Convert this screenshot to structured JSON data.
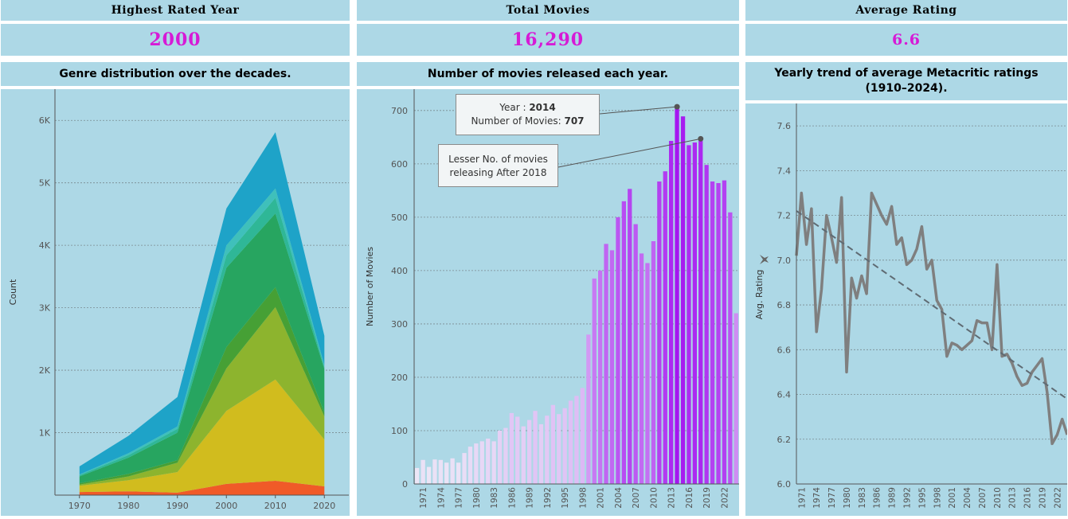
{
  "kpis": [
    {
      "title": "Highest Rated Year",
      "value": "2000"
    },
    {
      "title": "Total Movies",
      "value": "16,290"
    },
    {
      "title": "Average Rating",
      "value": "6.6"
    }
  ],
  "chart_data": [
    {
      "type": "area",
      "title": "Genre distribution over the decades.",
      "xlabel": "",
      "ylabel": "Count",
      "x": [
        1970,
        1980,
        1990,
        2000,
        2010,
        2020
      ],
      "xticks": [
        "1970",
        "1980",
        "1990",
        "2000",
        "2010",
        "2020"
      ],
      "ylim": [
        0,
        6500
      ],
      "yticks": [
        {
          "v": 1000,
          "label": "1K"
        },
        {
          "v": 2000,
          "label": "2K"
        },
        {
          "v": 3000,
          "label": "3K"
        },
        {
          "v": 4000,
          "label": "4K"
        },
        {
          "v": 5000,
          "label": "5K"
        },
        {
          "v": 6000,
          "label": "6K"
        }
      ],
      "stacking": "stacked",
      "series": [
        {
          "color": "#f05a28",
          "values": [
            50,
            60,
            40,
            180,
            230,
            140
          ]
        },
        {
          "color": "#d1bc1e",
          "values": [
            100,
            180,
            330,
            1170,
            1620,
            750
          ]
        },
        {
          "color": "#8db42e",
          "values": [
            20,
            60,
            150,
            680,
            1160,
            370
          ]
        },
        {
          "color": "#46a035",
          "values": [
            20,
            40,
            40,
            340,
            320,
            60
          ]
        },
        {
          "color": "#27a560",
          "values": [
            110,
            260,
            440,
            1270,
            1180,
            700
          ]
        },
        {
          "color": "#2fb797",
          "values": [
            20,
            40,
            60,
            200,
            250,
            30
          ]
        },
        {
          "color": "#3fc0bb",
          "values": [
            10,
            30,
            40,
            160,
            150,
            30
          ]
        },
        {
          "color": "#1ea3c8",
          "values": [
            130,
            280,
            470,
            590,
            900,
            470
          ]
        }
      ],
      "grid": true
    },
    {
      "type": "bar",
      "title": "Number of movies released each year.",
      "ylabel": "Number of Movies",
      "xlabel": "",
      "ylim": [
        0,
        740
      ],
      "yticks": [
        0,
        100,
        200,
        300,
        400,
        500,
        600,
        700
      ],
      "categories": [
        "1970",
        "1971",
        "1972",
        "1973",
        "1974",
        "1975",
        "1976",
        "1977",
        "1978",
        "1979",
        "1980",
        "1981",
        "1982",
        "1983",
        "1984",
        "1985",
        "1986",
        "1987",
        "1988",
        "1989",
        "1990",
        "1991",
        "1992",
        "1993",
        "1994",
        "1995",
        "1996",
        "1997",
        "1998",
        "1999",
        "2000",
        "2001",
        "2002",
        "2003",
        "2004",
        "2005",
        "2006",
        "2007",
        "2008",
        "2009",
        "2010",
        "2011",
        "2012",
        "2013",
        "2014",
        "2015",
        "2016",
        "2017",
        "2018",
        "2019",
        "2020",
        "2021",
        "2022",
        "2023",
        "2024"
      ],
      "values": [
        30,
        45,
        32,
        46,
        45,
        40,
        48,
        40,
        58,
        70,
        76,
        80,
        85,
        80,
        100,
        105,
        133,
        126,
        108,
        120,
        137,
        112,
        128,
        148,
        131,
        142,
        156,
        165,
        180,
        280,
        385,
        400,
        450,
        438,
        500,
        530,
        553,
        487,
        432,
        414,
        455,
        567,
        586,
        643,
        707,
        689,
        635,
        640,
        647,
        598,
        567,
        564,
        569,
        509,
        320
      ],
      "xtick_labels": [
        "1971",
        "1974",
        "1977",
        "1980",
        "1983",
        "1986",
        "1989",
        "1992",
        "1995",
        "1998",
        "2001",
        "2004",
        "2007",
        "2010",
        "2013",
        "2016",
        "2019",
        "2022"
      ],
      "annotations": [
        {
          "line1_label": "Year : ",
          "line1_value": "2014",
          "line2_label": "Number of Movies: ",
          "line2_value": "707",
          "x": "2014",
          "y": 707
        },
        {
          "text_line1": "Lesser No. of movies",
          "text_line2": "releasing After 2018",
          "x": "2018",
          "y": 647
        }
      ],
      "grid": true
    },
    {
      "type": "line",
      "title": "Yearly trend of average Metacritic ratings (1910–2024).",
      "ylabel": "Avg. Rating",
      "xlabel": "",
      "ylim": [
        6.0,
        7.7
      ],
      "yticks": [
        "6.0",
        "6.2",
        "6.4",
        "6.6",
        "6.8",
        "7.0",
        "7.2",
        "7.4",
        "7.6"
      ],
      "x_range": [
        1970,
        2024
      ],
      "xtick_labels": [
        "1971",
        "1974",
        "1977",
        "1980",
        "1983",
        "1986",
        "1989",
        "1992",
        "1995",
        "1998",
        "2001",
        "2004",
        "2007",
        "2010",
        "2013",
        "2016",
        "2019",
        "2022"
      ],
      "series": [
        {
          "color": "#7f7f7f",
          "x": [
            1970,
            1971,
            1972,
            1973,
            1974,
            1975,
            1976,
            1977,
            1978,
            1979,
            1980,
            1981,
            1982,
            1983,
            1984,
            1985,
            1986,
            1987,
            1988,
            1989,
            1990,
            1991,
            1992,
            1993,
            1994,
            1995,
            1996,
            1997,
            1998,
            1999,
            2000,
            2001,
            2002,
            2003,
            2004,
            2005,
            2006,
            2007,
            2008,
            2009,
            2010,
            2011,
            2012,
            2013,
            2014,
            2015,
            2016,
            2017,
            2018,
            2019,
            2020,
            2021,
            2022,
            2023,
            2024
          ],
          "values": [
            7.02,
            7.3,
            7.07,
            7.23,
            6.68,
            6.87,
            7.2,
            7.1,
            6.99,
            7.28,
            6.5,
            6.92,
            6.83,
            6.93,
            6.85,
            7.3,
            7.25,
            7.2,
            7.16,
            7.24,
            7.07,
            7.1,
            6.98,
            7.0,
            7.05,
            7.15,
            6.96,
            7.0,
            6.82,
            6.78,
            6.57,
            6.63,
            6.62,
            6.6,
            6.62,
            6.64,
            6.73,
            6.72,
            6.72,
            6.6,
            6.98,
            6.57,
            6.58,
            6.54,
            6.48,
            6.44,
            6.45,
            6.5,
            6.53,
            6.56,
            6.41,
            6.18,
            6.22,
            6.29,
            6.22
          ]
        }
      ],
      "trend_line": {
        "color": "#5f6b73",
        "x": [
          1970,
          2024
        ],
        "values": [
          7.22,
          6.38
        ]
      },
      "grid": true
    }
  ]
}
